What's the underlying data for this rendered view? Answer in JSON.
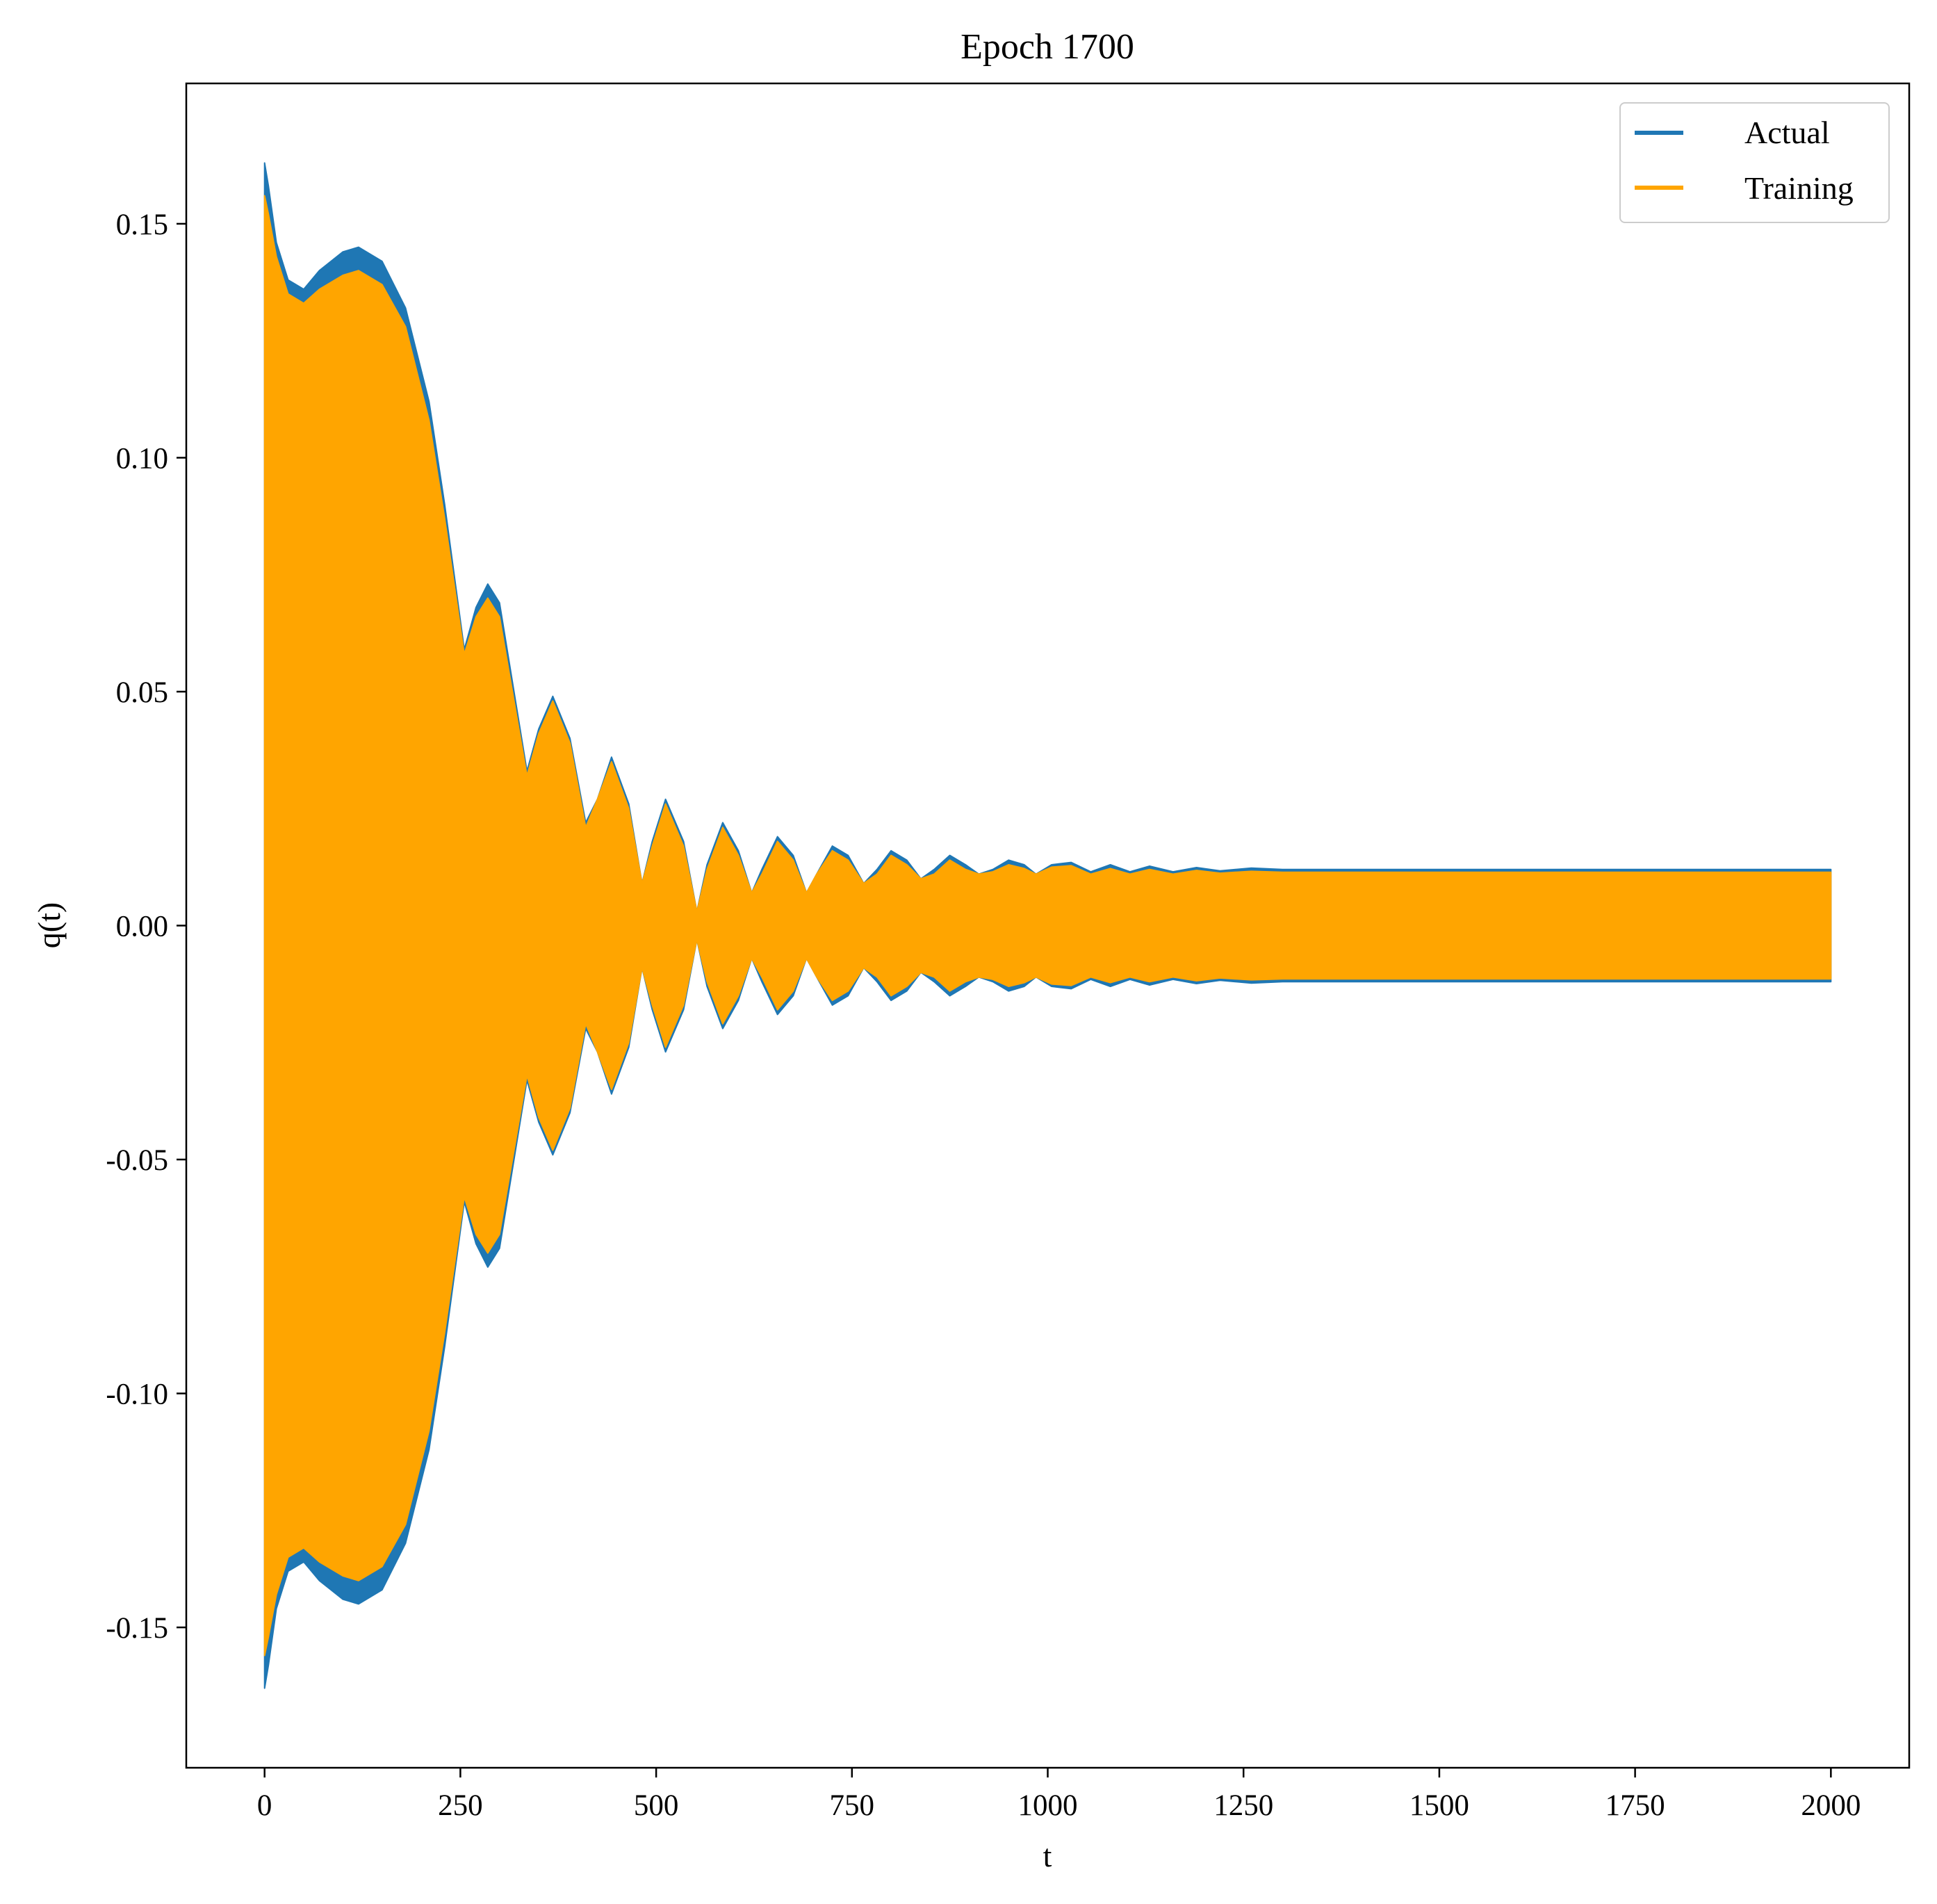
{
  "chart_data": {
    "type": "area",
    "title": "Epoch 1700",
    "xlabel": "t",
    "ylabel": "q(t)",
    "xlim": [
      -100,
      2100
    ],
    "ylim": [
      -0.18,
      0.18
    ],
    "x_ticks": [
      0,
      250,
      500,
      750,
      1000,
      1250,
      1500,
      1750,
      2000
    ],
    "x_tick_labels": [
      "0",
      "250",
      "500",
      "750",
      "1000",
      "1250",
      "1500",
      "1750",
      "2000"
    ],
    "y_ticks": [
      -0.15,
      -0.1,
      -0.05,
      0.0,
      0.05,
      0.1,
      0.15
    ],
    "y_tick_labels": [
      "-0.15",
      "-0.10",
      "-0.05",
      "0.00",
      "0.05",
      "0.10",
      "0.15"
    ],
    "grid": false,
    "legend_position": "top-right",
    "series": [
      {
        "name": "Actual",
        "color": "#1f77b4",
        "render": "oscillation envelope (fills between +amp and -amp)",
        "envelope_t": [
          0,
          5,
          15,
          30,
          50,
          70,
          100,
          120,
          150,
          180,
          210,
          230,
          255,
          270,
          285,
          300,
          335,
          350,
          368,
          390,
          410,
          425,
          443,
          465,
          482,
          495,
          512,
          535,
          552,
          565,
          585,
          605,
          622,
          635,
          655,
          675,
          692,
          705,
          725,
          745,
          765,
          782,
          800,
          820,
          838,
          855,
          875,
          895,
          912,
          930,
          950,
          970,
          985,
          1005,
          1030,
          1055,
          1080,
          1105,
          1130,
          1160,
          1190,
          1220,
          1260,
          1300,
          1400,
          1500,
          1750,
          2000
        ],
        "envelope_amp": [
          0.163,
          0.158,
          0.146,
          0.138,
          0.136,
          0.14,
          0.144,
          0.145,
          0.142,
          0.132,
          0.112,
          0.09,
          0.059,
          0.068,
          0.073,
          0.069,
          0.033,
          0.042,
          0.049,
          0.04,
          0.022,
          0.027,
          0.036,
          0.026,
          0.009,
          0.018,
          0.027,
          0.018,
          0.003,
          0.013,
          0.022,
          0.016,
          0.007,
          0.012,
          0.019,
          0.015,
          0.007,
          0.011,
          0.017,
          0.015,
          0.009,
          0.012,
          0.016,
          0.014,
          0.01,
          0.012,
          0.015,
          0.013,
          0.011,
          0.012,
          0.014,
          0.013,
          0.011,
          0.013,
          0.0135,
          0.0115,
          0.013,
          0.0115,
          0.0127,
          0.0115,
          0.0124,
          0.0117,
          0.0123,
          0.012,
          0.012,
          0.012,
          0.012,
          0.012
        ]
      },
      {
        "name": "Training",
        "color": "#ffa500",
        "render": "oscillation envelope (fills between +amp and -amp)",
        "envelope_t": [
          0,
          5,
          15,
          30,
          50,
          70,
          100,
          120,
          150,
          180,
          210,
          230,
          255,
          270,
          285,
          300,
          335,
          350,
          368,
          390,
          410,
          425,
          443,
          465,
          482,
          495,
          512,
          535,
          552,
          565,
          585,
          605,
          622,
          635,
          655,
          675,
          692,
          705,
          725,
          745,
          765,
          782,
          800,
          820,
          838,
          855,
          875,
          895,
          912,
          930,
          950,
          970,
          985,
          1005,
          1030,
          1055,
          1080,
          1105,
          1130,
          1160,
          1190,
          1220,
          1260,
          1300,
          1400,
          1500,
          1750,
          2000
        ],
        "envelope_amp": [
          0.156,
          0.152,
          0.143,
          0.135,
          0.133,
          0.136,
          0.139,
          0.14,
          0.137,
          0.128,
          0.108,
          0.087,
          0.058,
          0.066,
          0.07,
          0.066,
          0.032,
          0.041,
          0.048,
          0.039,
          0.021,
          0.027,
          0.035,
          0.025,
          0.009,
          0.017,
          0.026,
          0.017,
          0.003,
          0.012,
          0.021,
          0.015,
          0.007,
          0.011,
          0.018,
          0.014,
          0.007,
          0.011,
          0.016,
          0.014,
          0.009,
          0.011,
          0.015,
          0.013,
          0.01,
          0.011,
          0.014,
          0.012,
          0.011,
          0.0115,
          0.013,
          0.0122,
          0.011,
          0.0125,
          0.0128,
          0.011,
          0.0122,
          0.011,
          0.012,
          0.011,
          0.0118,
          0.0112,
          0.0116,
          0.0114,
          0.0114,
          0.0114,
          0.0114,
          0.0114
        ]
      }
    ],
    "legend": [
      "Actual",
      "Training"
    ]
  }
}
